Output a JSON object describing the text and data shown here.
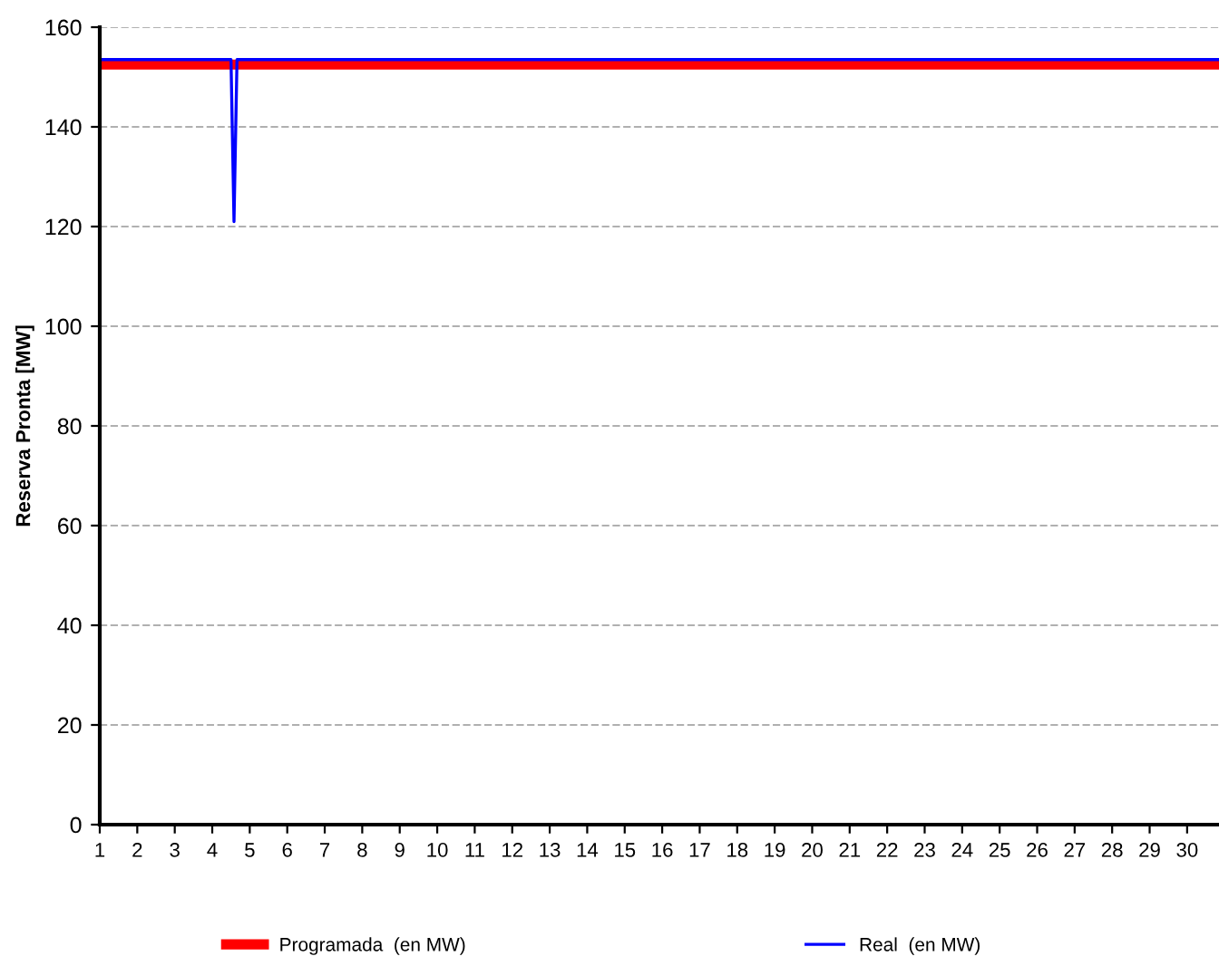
{
  "chart_data": {
    "type": "line",
    "ylabel": "Reserva Pronta [MW]",
    "xlim": [
      1,
      30.85
    ],
    "xticks": [
      1,
      2,
      3,
      4,
      5,
      6,
      7,
      8,
      9,
      10,
      11,
      12,
      13,
      14,
      15,
      16,
      17,
      18,
      19,
      20,
      21,
      22,
      23,
      24,
      25,
      26,
      27,
      28,
      29,
      30
    ],
    "ylim": [
      0,
      160
    ],
    "yticks": [
      0,
      20,
      40,
      60,
      80,
      100,
      120,
      140,
      160
    ],
    "grid": "y",
    "legend": "bottom",
    "series": [
      {
        "name": "Programada  (en MW)",
        "color": "#ff0000",
        "x": [
          1,
          30.85
        ],
        "values": [
          152.5,
          152.5
        ]
      },
      {
        "name": "Real  (en MW)",
        "color": "#0000ff",
        "x": [
          1,
          4.5,
          4.58,
          4.66,
          30.85
        ],
        "values": [
          153.5,
          153.5,
          121,
          153.5,
          153.5
        ]
      }
    ]
  }
}
